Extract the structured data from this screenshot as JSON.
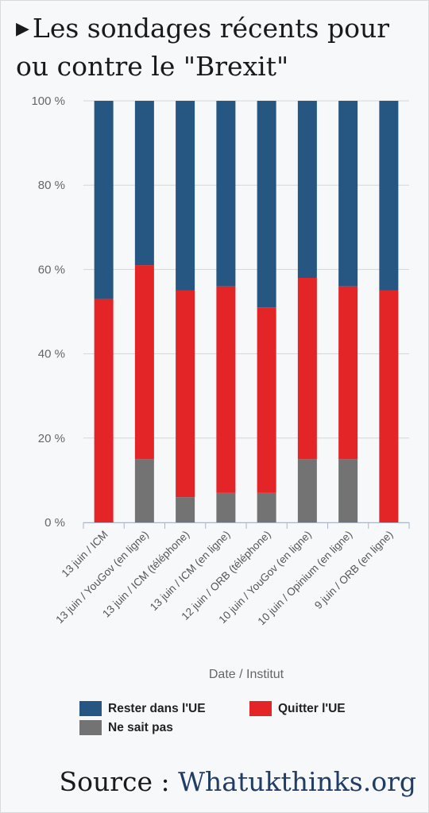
{
  "title": "Les sondages récents pour ou contre le \"Brexit\"",
  "colors": {
    "remain": "#255782",
    "leave": "#e42528",
    "dontknow": "#737373"
  },
  "chart_data": {
    "type": "bar",
    "stacked": true,
    "xlabel": "Date / Institut",
    "ylabel": "",
    "ylim": [
      0,
      100
    ],
    "y_ticks": [
      "0 %",
      "20 %",
      "40 %",
      "60 %",
      "80 %",
      "100 %"
    ],
    "grid": true,
    "legend_position": "bottom",
    "categories": [
      "13 juin / ICM",
      "13 juin / YouGov (en ligne)",
      "13 juin / ICM (téléphone)",
      "13 juin / ICM (en ligne)",
      "12 juin / ORB (téléphone)",
      "10 juin / YouGov (en ligne)",
      "10 juin / Opinium (en ligne)",
      "9 juin / ORB (en ligne)"
    ],
    "series": [
      {
        "name": "Ne sait pas",
        "key": "dontknow",
        "values": [
          0,
          15,
          6,
          7,
          7,
          15,
          15,
          0
        ]
      },
      {
        "name": "Quitter l'UE",
        "key": "leave",
        "values": [
          53,
          46,
          49,
          49,
          44,
          43,
          41,
          55
        ]
      },
      {
        "name": "Rester dans l'UE",
        "key": "remain",
        "values": [
          47,
          39,
          45,
          44,
          49,
          42,
          44,
          45
        ]
      }
    ]
  },
  "legend": {
    "remain": "Rester dans l'UE",
    "leave": "Quitter l'UE",
    "dontknow": "Ne sait pas"
  },
  "source": {
    "prefix": "Source : ",
    "link": "Whatukthinks.org"
  }
}
